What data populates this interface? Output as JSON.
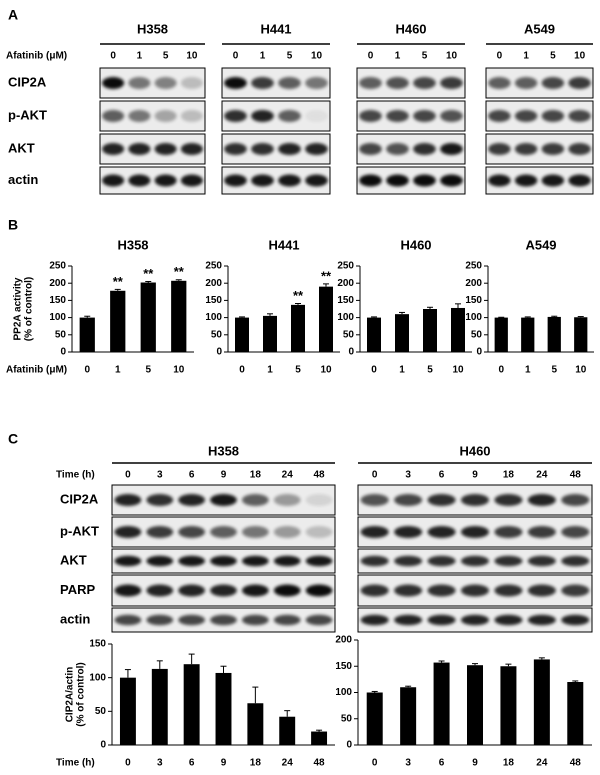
{
  "panel_a": {
    "label": "A",
    "dose_label": "Afatinib (μM)",
    "doses": [
      "0",
      "1",
      "5",
      "10"
    ],
    "cell_lines": [
      "H358",
      "H441",
      "H460",
      "A549"
    ],
    "rows": [
      "CIP2A",
      "p-AKT",
      "AKT",
      "actin"
    ]
  },
  "panel_b": {
    "label": "B"
  },
  "panel_c": {
    "label": "C",
    "time_label": "Time (h)",
    "times": [
      "0",
      "3",
      "6",
      "9",
      "18",
      "24",
      "48"
    ],
    "cell_lines": [
      "H358",
      "H460"
    ],
    "rows": [
      "CIP2A",
      "p-AKT",
      "AKT",
      "PARP",
      "actin"
    ]
  },
  "chart_data": [
    {
      "type": "bar",
      "title": "H358",
      "y_label": [
        "PP2A activity",
        "(% of control)"
      ],
      "x_label": "Afatinib (μM)",
      "categories": [
        "0",
        "1",
        "5",
        "10"
      ],
      "values": [
        100,
        178,
        202,
        207
      ],
      "errors": [
        4,
        4,
        3,
        3
      ],
      "annotations": [
        null,
        "**",
        "**",
        "**"
      ],
      "ylim": [
        0,
        250
      ],
      "yticks": [
        0,
        50,
        100,
        150,
        200,
        250
      ],
      "color": "#000000"
    },
    {
      "type": "bar",
      "title": "H441",
      "categories": [
        "0",
        "1",
        "5",
        "10"
      ],
      "values": [
        100,
        105,
        137,
        190
      ],
      "errors": [
        2,
        6,
        4,
        8
      ],
      "annotations": [
        null,
        null,
        "**",
        "**"
      ],
      "ylim": [
        0,
        250
      ],
      "yticks": [
        0,
        50,
        100,
        150,
        200,
        250
      ],
      "color": "#000000"
    },
    {
      "type": "bar",
      "title": "H460",
      "categories": [
        "0",
        "1",
        "5",
        "10"
      ],
      "values": [
        100,
        110,
        125,
        128
      ],
      "errors": [
        2,
        5,
        5,
        12
      ],
      "ylim": [
        0,
        250
      ],
      "yticks": [
        0,
        50,
        100,
        150,
        200,
        250
      ],
      "color": "#000000"
    },
    {
      "type": "bar",
      "title": "A549",
      "categories": [
        "0",
        "1",
        "5",
        "10"
      ],
      "values": [
        100,
        100,
        102,
        101
      ],
      "errors": [
        1,
        2,
        2,
        2
      ],
      "ylim": [
        0,
        250
      ],
      "yticks": [
        0,
        50,
        100,
        150,
        200,
        250
      ],
      "color": "#000000"
    },
    {
      "type": "bar",
      "y_label": [
        "CIP2A/actin",
        "(% of control)"
      ],
      "x_label": "Time (h)",
      "categories": [
        "0",
        "3",
        "6",
        "9",
        "18",
        "24",
        "48"
      ],
      "values": [
        100,
        113,
        120,
        107,
        62,
        42,
        20
      ],
      "errors": [
        12,
        12,
        15,
        10,
        24,
        9,
        2
      ],
      "ylim": [
        0,
        150
      ],
      "yticks": [
        0,
        50,
        100,
        150
      ],
      "color": "#000000"
    },
    {
      "type": "bar",
      "categories": [
        "0",
        "3",
        "6",
        "9",
        "18",
        "24",
        "48"
      ],
      "values": [
        100,
        110,
        157,
        152,
        150,
        163,
        120
      ],
      "errors": [
        2,
        2,
        3,
        3,
        4,
        3,
        2
      ],
      "ylim": [
        0,
        200
      ],
      "yticks": [
        0,
        50,
        100,
        150,
        200
      ],
      "color": "#000000"
    }
  ]
}
